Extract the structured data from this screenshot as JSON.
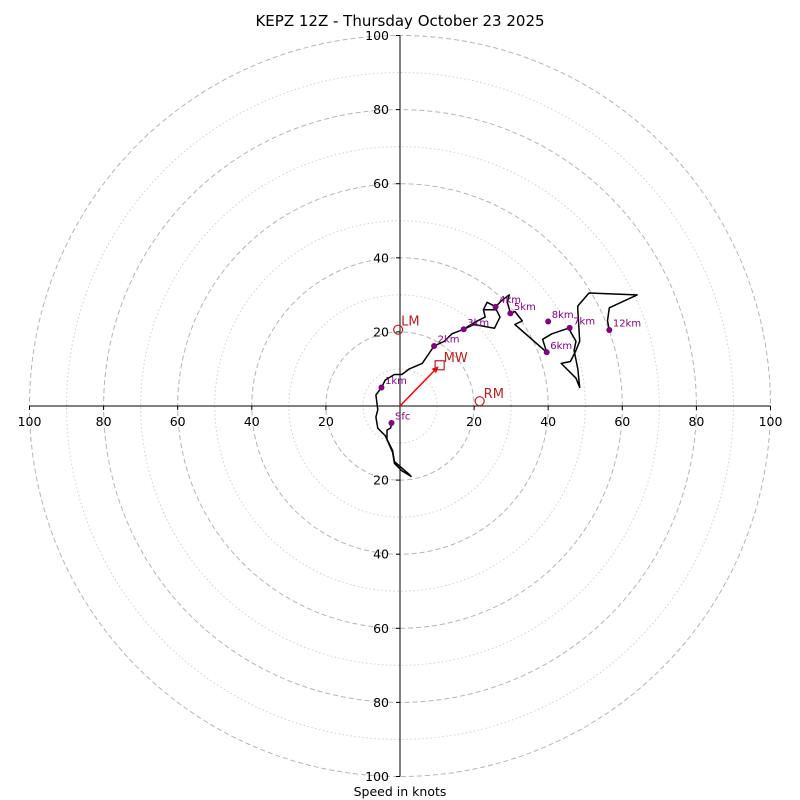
{
  "chart_data": {
    "type": "scatter",
    "subtype": "hodograph",
    "title": "KEPZ 12Z - Thursday October 23 2025",
    "xlabel": "Speed in knots",
    "xlim": [
      -100,
      100
    ],
    "ylim": [
      -100,
      100
    ],
    "major_rings": [
      20,
      40,
      60,
      80,
      100
    ],
    "minor_rings": [
      10,
      30,
      50,
      70,
      90
    ],
    "x_ticks": [
      {
        "value": -100,
        "label": "100"
      },
      {
        "value": -80,
        "label": "80"
      },
      {
        "value": -60,
        "label": "60"
      },
      {
        "value": -40,
        "label": "40"
      },
      {
        "value": -20,
        "label": "20"
      },
      {
        "value": 20,
        "label": "20"
      },
      {
        "value": 40,
        "label": "40"
      },
      {
        "value": 60,
        "label": "60"
      },
      {
        "value": 80,
        "label": "80"
      },
      {
        "value": 100,
        "label": "100"
      }
    ],
    "y_ticks": [
      {
        "value": 100,
        "label": "100"
      },
      {
        "value": 80,
        "label": "80"
      },
      {
        "value": 60,
        "label": "60"
      },
      {
        "value": 40,
        "label": "40"
      },
      {
        "value": 20,
        "label": "20"
      },
      {
        "value": -20,
        "label": "20"
      },
      {
        "value": -40,
        "label": "40"
      },
      {
        "value": -60,
        "label": "60"
      },
      {
        "value": -80,
        "label": "80"
      },
      {
        "value": -100,
        "label": "100"
      }
    ],
    "trace": {
      "color": "#000000",
      "points": [
        [
          -2.3,
          -4.6
        ],
        [
          -2.5,
          -5.9
        ],
        [
          -3.5,
          -6.5
        ],
        [
          -3.5,
          -9.0
        ],
        [
          -2.0,
          -12.0
        ],
        [
          -1.5,
          -15.0
        ],
        [
          2.5,
          -18.5
        ],
        [
          3.0,
          -19.0
        ],
        [
          0.5,
          -17.5
        ],
        [
          -1.5,
          -15.5
        ],
        [
          -2.0,
          -12.5
        ],
        [
          -4.0,
          -8.0
        ],
        [
          -6.0,
          -6.0
        ],
        [
          -6.5,
          -3.0
        ],
        [
          -6.0,
          -1.0
        ],
        [
          -6.5,
          3.0
        ],
        [
          -5.0,
          5.0
        ],
        [
          -4.0,
          7.0
        ],
        [
          -1.5,
          8.5
        ],
        [
          0.5,
          8.5
        ],
        [
          2.5,
          10.0
        ],
        [
          6.0,
          11.5
        ],
        [
          9.2,
          16.2
        ],
        [
          12.0,
          17.5
        ],
        [
          14.0,
          19.5
        ],
        [
          17.2,
          20.7
        ],
        [
          20.0,
          22.0
        ],
        [
          25.5,
          21.0
        ],
        [
          27.0,
          24.0
        ],
        [
          26.0,
          26.0
        ],
        [
          22.5,
          26.0
        ],
        [
          23.0,
          24.0
        ],
        [
          20.0,
          22.5
        ],
        [
          17.2,
          20.7
        ]
      ],
      "points2": [
        [
          22.5,
          26.0
        ],
        [
          23.5,
          28.0
        ],
        [
          25.8,
          26.8
        ],
        [
          27.5,
          28.5
        ],
        [
          29.5,
          30.0
        ],
        [
          29.0,
          28.0
        ],
        [
          29.8,
          25.0
        ],
        [
          31.0,
          25.5
        ],
        [
          33.0,
          23.0
        ],
        [
          31.0,
          22.0
        ],
        [
          39.6,
          14.5
        ],
        [
          38.5,
          18.0
        ],
        [
          41.0,
          19.5
        ],
        [
          45.5,
          21.0
        ],
        [
          47.5,
          17.5
        ],
        [
          47.0,
          15.0
        ],
        [
          48.0,
          10.0
        ],
        [
          48.5,
          5.0
        ],
        [
          47.5,
          7.5
        ],
        [
          43.5,
          11.5
        ],
        [
          46.0,
          12.0
        ],
        [
          47.5,
          15.0
        ],
        [
          48.5,
          17.5
        ],
        [
          48.0,
          26.0
        ],
        [
          48.0,
          27.0
        ],
        [
          51.0,
          30.5
        ],
        [
          64.0,
          30.0
        ],
        [
          56.5,
          26.5
        ],
        [
          56.0,
          23.0
        ],
        [
          56.5,
          20.5
        ]
      ]
    },
    "height_markers": {
      "color": "#800080",
      "points": [
        {
          "label": "Sfc",
          "x": -2.3,
          "y": -4.6
        },
        {
          "label": "1km",
          "x": -5.0,
          "y": 5.0
        },
        {
          "label": "2km",
          "x": 9.2,
          "y": 16.2
        },
        {
          "label": "3km",
          "x": 17.2,
          "y": 20.7
        },
        {
          "label": "4km",
          "x": 25.8,
          "y": 26.8
        },
        {
          "label": "5km",
          "x": 29.8,
          "y": 25.0
        },
        {
          "label": "6km",
          "x": 39.6,
          "y": 14.5
        },
        {
          "label": "7km",
          "x": 45.8,
          "y": 21.1
        },
        {
          "label": "8km",
          "x": 40.0,
          "y": 22.8
        },
        {
          "label": "12km",
          "x": 56.5,
          "y": 20.5
        }
      ]
    },
    "storm_motion": {
      "color": "#b22222",
      "vector_color": "#ff0000",
      "mean_wind": {
        "label": "MW",
        "x": 10.7,
        "y": 11.0
      },
      "left_mover": {
        "label": "LM",
        "x": -0.5,
        "y": 20.6
      },
      "right_mover": {
        "label": "RM",
        "x": 21.5,
        "y": 1.3
      }
    }
  }
}
